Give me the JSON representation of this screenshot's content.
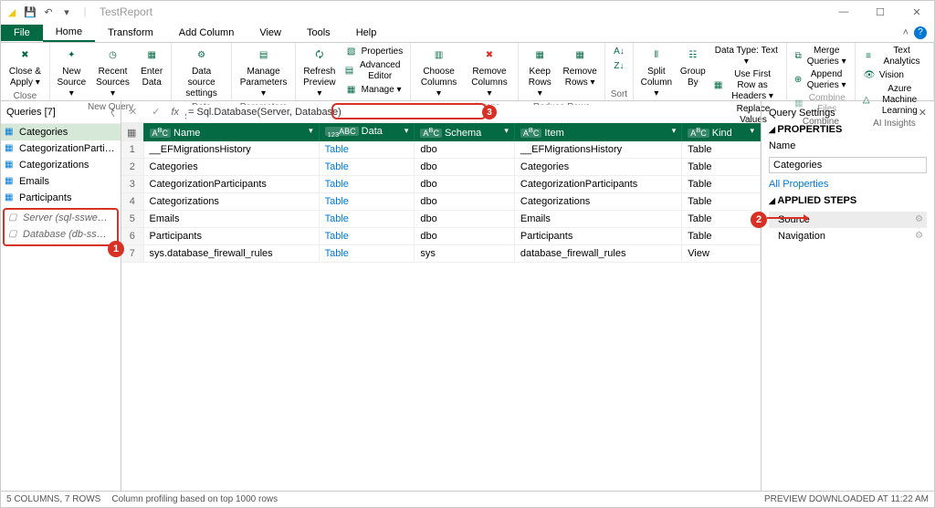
{
  "titlebar": {
    "filename": "TestReport",
    "qat": [
      "logo",
      "save",
      "undo",
      "redo"
    ]
  },
  "tabs": {
    "file": "File",
    "items": [
      "Home",
      "Transform",
      "Add Column",
      "View",
      "Tools",
      "Help"
    ],
    "active": "Home"
  },
  "ribbon": {
    "close": {
      "label": "Close &\nApply ▾",
      "group": "Close"
    },
    "newquery": {
      "new": "New\nSource ▾",
      "recent": "Recent\nSources ▾",
      "enter": "Enter\nData",
      "group": "New Query"
    },
    "datasources": {
      "settings": "Data source\nsettings",
      "group": "Data Sources"
    },
    "params": {
      "manage": "Manage\nParameters ▾",
      "group": "Parameters"
    },
    "query": {
      "refresh": "Refresh\nPreview ▾",
      "props": "Properties",
      "adveditor": "Advanced Editor",
      "manage": "Manage ▾",
      "group": "Query"
    },
    "managecols": {
      "choose": "Choose\nColumns ▾",
      "remove": "Remove\nColumns ▾",
      "group": "Manage Columns"
    },
    "reducerows": {
      "keep": "Keep\nRows ▾",
      "remove": "Remove\nRows ▾",
      "group": "Reduce Rows"
    },
    "sort": {
      "group": "Sort"
    },
    "transform": {
      "split": "Split\nColumn ▾",
      "groupby": "Group\nBy",
      "datatype": "Data Type: Text ▾",
      "firstrow": "Use First Row as Headers ▾",
      "replace": "Replace Values",
      "group": "Transform"
    },
    "combine": {
      "merge": "Merge Queries ▾",
      "append": "Append Queries ▾",
      "files": "Combine Files",
      "group": "Combine"
    },
    "ai": {
      "text": "Text Analytics",
      "vision": "Vision",
      "ml": "Azure Machine Learning",
      "group": "AI Insights"
    }
  },
  "queries": {
    "header": "Queries [7]",
    "items": [
      {
        "label": "Categories",
        "selected": true
      },
      {
        "label": "CategorizationParticipants"
      },
      {
        "label": "Categorizations"
      },
      {
        "label": "Emails"
      },
      {
        "label": "Participants"
      }
    ],
    "params": [
      {
        "label": "Server (sql-ssweagleeye-..."
      },
      {
        "label": "Database (db-ssweagleey..."
      }
    ],
    "badge": "1"
  },
  "formula": {
    "value": "= Sql.Database(Server, Database)",
    "badge": "3"
  },
  "grid": {
    "columns": [
      {
        "type": "ABC",
        "name": "Name"
      },
      {
        "type": "ABC123",
        "name": "Data"
      },
      {
        "type": "ABC",
        "name": "Schema"
      },
      {
        "type": "ABC",
        "name": "Item"
      },
      {
        "type": "ABC",
        "name": "Kind"
      }
    ],
    "rows": [
      [
        "__EFMigrationsHistory",
        "Table",
        "dbo",
        "__EFMigrationsHistory",
        "Table"
      ],
      [
        "Categories",
        "Table",
        "dbo",
        "Categories",
        "Table"
      ],
      [
        "CategorizationParticipants",
        "Table",
        "dbo",
        "CategorizationParticipants",
        "Table"
      ],
      [
        "Categorizations",
        "Table",
        "dbo",
        "Categorizations",
        "Table"
      ],
      [
        "Emails",
        "Table",
        "dbo",
        "Emails",
        "Table"
      ],
      [
        "Participants",
        "Table",
        "dbo",
        "Participants",
        "Table"
      ],
      [
        "sys.database_firewall_rules",
        "Table",
        "sys",
        "database_firewall_rules",
        "View"
      ]
    ]
  },
  "settings": {
    "title": "Query Settings",
    "properties": "PROPERTIES",
    "namelabel": "Name",
    "namevalue": "Categories",
    "allprops": "All Properties",
    "applied": "APPLIED STEPS",
    "steps": [
      {
        "label": "Source",
        "selected": true,
        "gear": true
      },
      {
        "label": "Navigation",
        "gear": true
      }
    ],
    "badge": "2"
  },
  "statusbar": {
    "left1": "5 COLUMNS, 7 ROWS",
    "left2": "Column profiling based on top 1000 rows",
    "right": "PREVIEW DOWNLOADED AT 11:22 AM"
  },
  "colors": {
    "accent": "#046a44",
    "highlight": "#d93025",
    "link": "#0078d4"
  }
}
